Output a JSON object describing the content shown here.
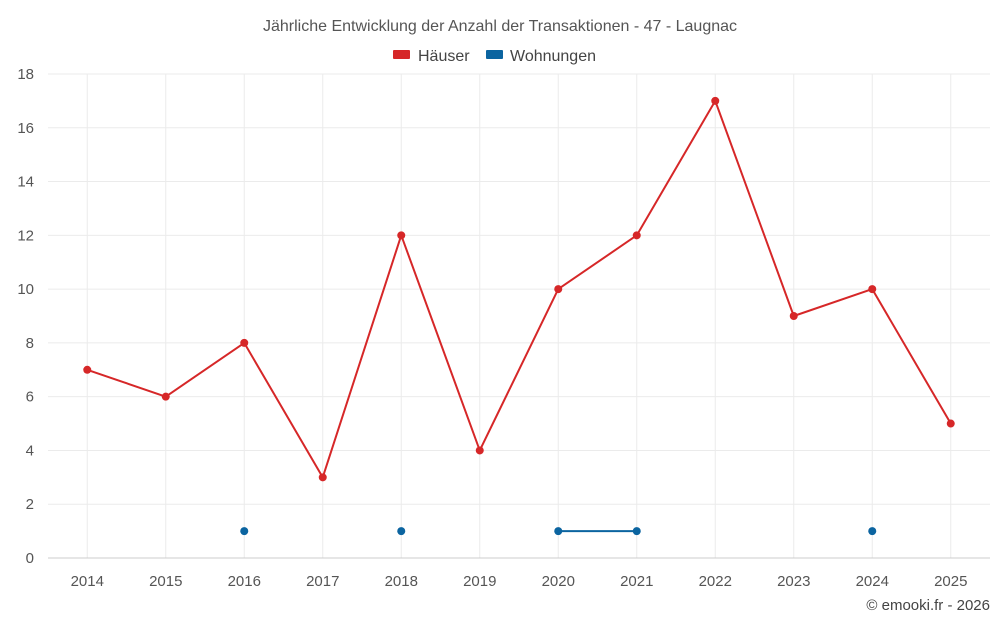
{
  "chart_data": {
    "type": "line",
    "title": "Jährliche Entwicklung der Anzahl der Transaktionen - 47 - Laugnac",
    "categories": [
      "2014",
      "2015",
      "2016",
      "2017",
      "2018",
      "2019",
      "2020",
      "2021",
      "2022",
      "2023",
      "2024",
      "2025"
    ],
    "series": [
      {
        "name": "Häuser",
        "color": "#d62728",
        "values": [
          7,
          6,
          8,
          3,
          12,
          4,
          10,
          12,
          17,
          9,
          10,
          5
        ]
      },
      {
        "name": "Wohnungen",
        "color": "#0b64a0",
        "values": [
          null,
          null,
          1,
          null,
          1,
          null,
          1,
          1,
          null,
          null,
          1,
          null
        ]
      }
    ],
    "yticks": [
      "0",
      "2",
      "4",
      "6",
      "8",
      "10",
      "12",
      "14",
      "16",
      "18"
    ],
    "ylim": [
      0,
      18
    ],
    "xlabel": "",
    "ylabel": "",
    "grid": true,
    "legend_position": "top-center"
  },
  "credit": "© emooki.fr - 2026"
}
